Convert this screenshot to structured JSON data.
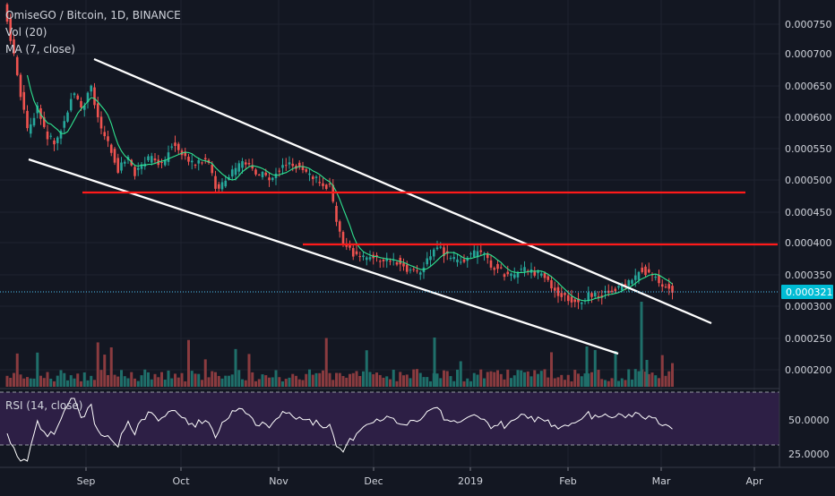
{
  "header": {
    "symbol_title": "OmiseGO / Bitcoin, 1D, BINANCE",
    "vol_label": "Vol (20)",
    "ma_label": "MA (7, close)"
  },
  "price_axis": {
    "ticks": [
      "0.000750",
      "0.000700",
      "0.000650",
      "0.000600",
      "0.000550",
      "0.000500",
      "0.000450",
      "0.000400",
      "0.000350",
      "0.000300",
      "0.000250",
      "0.000200"
    ],
    "current_price": "0.000321"
  },
  "rsi": {
    "label": "RSI (14, close)",
    "ticks": [
      "50.0000",
      "25.0000"
    ]
  },
  "time_axis": {
    "labels": [
      "Sep",
      "Oct",
      "Nov",
      "Dec",
      "2019",
      "Feb",
      "Mar",
      "Apr"
    ]
  },
  "colors": {
    "background": "#131722",
    "up": "#26a69a",
    "down": "#ef5350",
    "trend_line": "#ffffff",
    "resistance": "#ff1a1a",
    "ma": "#2fe38f",
    "rsi_band": "#2d1f45",
    "current_price_bg": "#00bcd4"
  }
}
